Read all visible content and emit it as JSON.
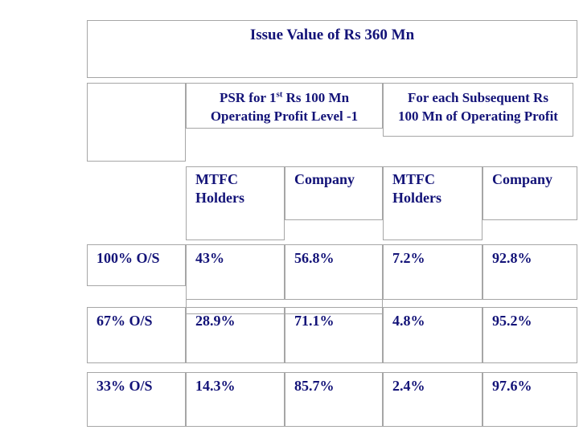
{
  "title": "Issue Value of Rs 360 Mn",
  "table": {
    "group_headers": {
      "psr": {
        "line1_prefix": "PSR for 1",
        "line1_sup": "st",
        "line1_suffix": " Rs 100 Mn",
        "line2": "Operating Profit Level -1"
      },
      "subsequent": {
        "line1": "For each Subsequent Rs",
        "line2": "100 Mn of Operating Profit"
      }
    },
    "col_headers": [
      "MTFC Holders",
      "Company",
      "MTFC Holders",
      "Company"
    ],
    "rows": [
      {
        "label": "100% O/S",
        "values": [
          "43%",
          "56.8%",
          "7.2%",
          "92.8%"
        ]
      },
      {
        "label": "67% O/S",
        "values": [
          "28.9%",
          "71.1%",
          "4.8%",
          "95.2%"
        ]
      },
      {
        "label": "33% O/S",
        "values": [
          "14.3%",
          "85.7%",
          "2.4%",
          "97.6%"
        ]
      }
    ]
  },
  "colors": {
    "text_navy": "#131378",
    "border_gray": "#a6a6a6",
    "background": "#ffffff"
  }
}
